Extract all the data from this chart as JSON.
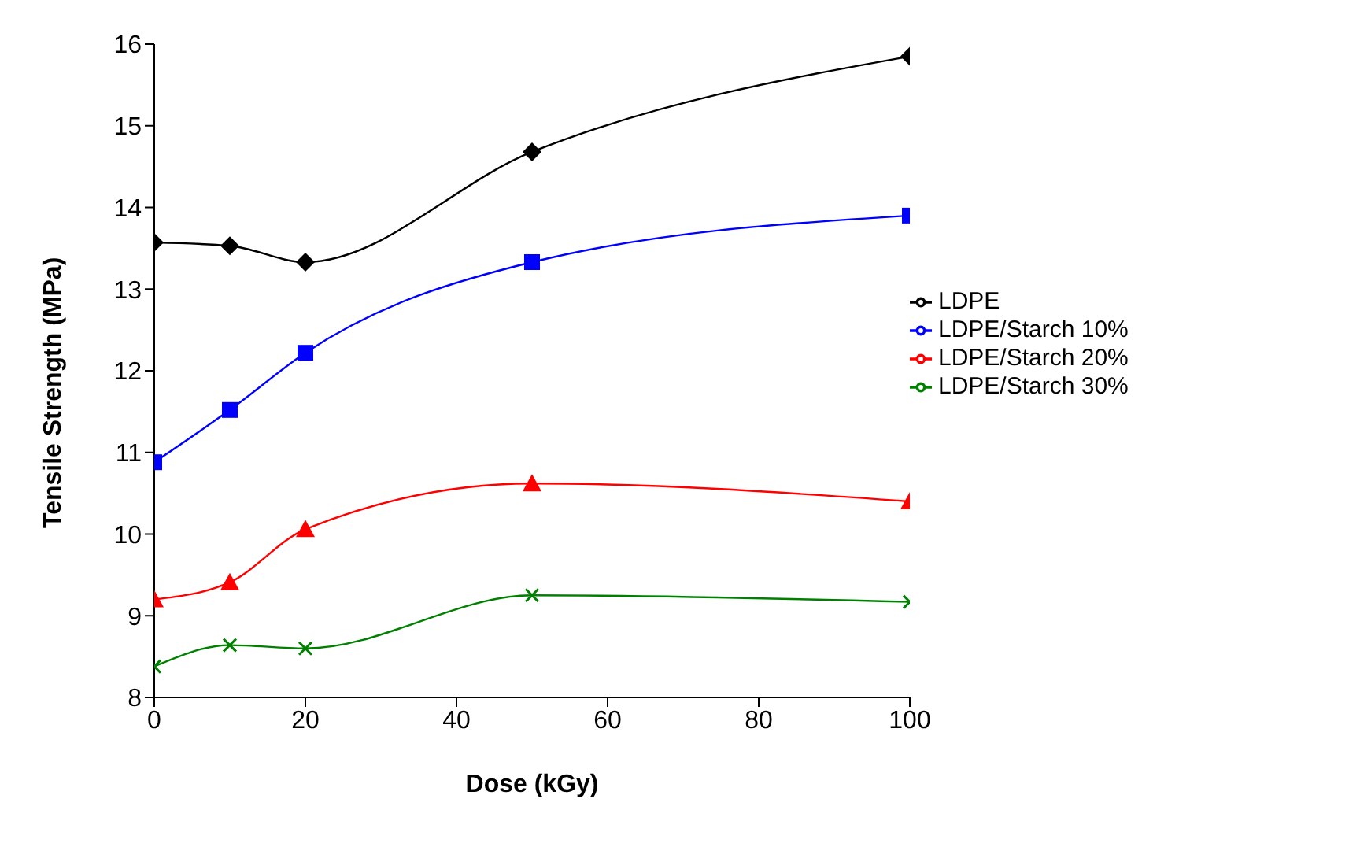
{
  "chart_data": {
    "type": "line",
    "xlabel": "Dose (kGy)",
    "ylabel": "Tensile Strength (MPa)",
    "x": [
      0,
      10,
      20,
      50,
      100
    ],
    "series": [
      {
        "name": "LDPE",
        "color": "#000000",
        "marker": "diamond",
        "values": [
          13.57,
          13.53,
          13.33,
          14.68,
          15.85
        ]
      },
      {
        "name": "LDPE/Starch 10%",
        "color": "#0000ff",
        "marker": "square",
        "values": [
          10.88,
          11.52,
          12.22,
          13.33,
          13.9
        ]
      },
      {
        "name": "LDPE/Starch 20%",
        "color": "#ff0000",
        "marker": "triangle",
        "values": [
          9.2,
          9.41,
          10.06,
          10.62,
          10.4
        ]
      },
      {
        "name": "LDPE/Starch 30%",
        "color": "#008000",
        "marker": "cross",
        "values": [
          8.38,
          8.64,
          8.6,
          9.25,
          9.17
        ]
      }
    ],
    "xlim": [
      0,
      100
    ],
    "xticks": [
      0,
      20,
      40,
      60,
      80,
      100
    ],
    "ylim": [
      8,
      16
    ],
    "yticks": [
      8,
      9,
      10,
      11,
      12,
      13,
      14,
      15,
      16
    ],
    "grid": false,
    "legend": "right"
  }
}
